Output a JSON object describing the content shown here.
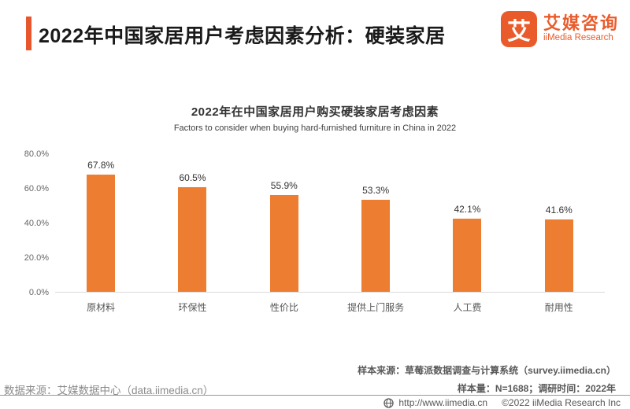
{
  "header": {
    "title": "2022年中国家居用户考虑因素分析：硬装家居",
    "logo": {
      "mark": "艾",
      "name_cn": "艾媒咨询",
      "name_en": "iiMedia Research"
    }
  },
  "chart_data": {
    "type": "bar",
    "title": "2022年在中国家居用户购买硬装家居考虑因素",
    "subtitle": "Factors to consider when buying hard-furnished furniture in China in 2022",
    "categories": [
      "原材料",
      "环保性",
      "性价比",
      "提供上门服务",
      "人工费",
      "耐用性"
    ],
    "values": [
      67.8,
      60.5,
      55.9,
      53.3,
      42.1,
      41.6
    ],
    "data_labels": [
      "67.8%",
      "60.5%",
      "55.9%",
      "53.3%",
      "42.1%",
      "41.6%"
    ],
    "xlabel": "",
    "ylabel": "",
    "ylim": [
      0,
      80
    ],
    "yticks": [
      "80.0%",
      "60.0%",
      "40.0%",
      "20.0%",
      "0.0%"
    ],
    "grid": false,
    "legend": "none",
    "bar_color": "#ed7d31"
  },
  "notes": {
    "sample_source": "样本来源：草莓派数据调查与计算系统（survey.iimedia.cn）",
    "sample_size": "样本量：N=1688；调研时间：2022年",
    "data_source": "数据来源：艾媒数据中心（data.iimedia.cn）"
  },
  "footer": {
    "url": "http://www.iimedia.cn",
    "copyright": "©2022  iiMedia Research  Inc"
  },
  "colors": {
    "accent_bar": "#e8562e",
    "logo_orange": "#ea5b2b",
    "bar_orange": "#ed7d31"
  }
}
